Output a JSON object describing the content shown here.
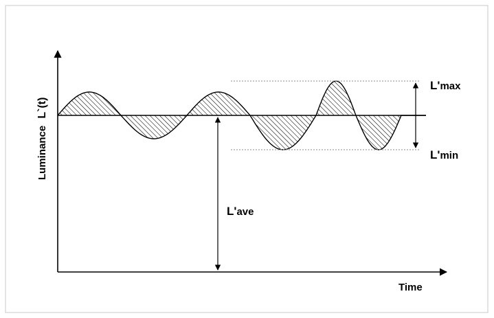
{
  "diagram": {
    "y_axis_label": "Luminance",
    "y_axis_symbol": "L`(t)",
    "x_axis_label": "Time",
    "max_label": {
      "main": "L'",
      "sub": "max"
    },
    "min_label": {
      "main": "L'",
      "sub": "min"
    },
    "ave_label": {
      "main": "L'",
      "sub": "ave"
    },
    "colors": {
      "line": "#000000",
      "guide": "#a0a0a0",
      "frame": "#c8c8c8",
      "hatch": "#000000"
    }
  }
}
